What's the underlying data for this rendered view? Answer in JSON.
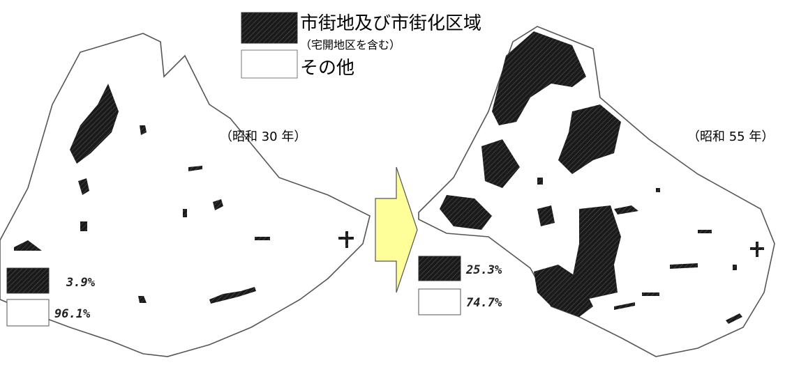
{
  "legend": {
    "urban": {
      "label": "市街地及び市街化区域",
      "note": "（宅開地区を含む）"
    },
    "other": {
      "label": "その他"
    }
  },
  "maps": [
    {
      "year_label": "（昭和 30 年）",
      "urban_share": "3.9%",
      "other_share": "96.1%"
    },
    {
      "year_label": "（昭和 55 年）",
      "urban_share": "25.3%",
      "other_share": "74.7%"
    }
  ]
}
